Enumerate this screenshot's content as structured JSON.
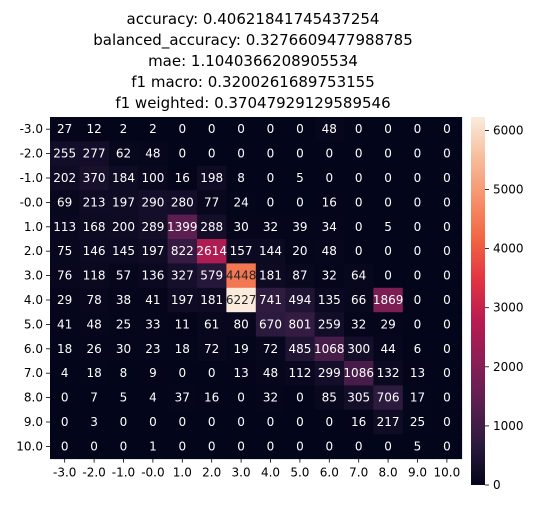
{
  "chart_data": {
    "type": "heatmap",
    "title_lines": [
      "accuracy: 0.40621841745437254",
      "balanced_accuracy: 0.3276609477988785",
      "mae: 1.1040366208905534",
      "f1 macro: 0.3200261689753155",
      "f1 weighted: 0.37047929129589546"
    ],
    "x_tick_labels": [
      "-3.0",
      "-2.0",
      "-1.0",
      "-0.0",
      "1.0",
      "2.0",
      "3.0",
      "4.0",
      "5.0",
      "6.0",
      "7.0",
      "8.0",
      "9.0",
      "10.0"
    ],
    "y_tick_labels": [
      "-3.0",
      "-2.0",
      "-1.0",
      "-0.0",
      "1.0",
      "2.0",
      "3.0",
      "4.0",
      "5.0",
      "6.0",
      "7.0",
      "8.0",
      "9.0",
      "10.0"
    ],
    "values": [
      [
        27,
        12,
        2,
        2,
        0,
        0,
        0,
        0,
        0,
        48,
        0,
        0,
        0,
        0
      ],
      [
        255,
        277,
        62,
        48,
        0,
        0,
        0,
        0,
        0,
        0,
        0,
        0,
        0,
        0
      ],
      [
        202,
        370,
        184,
        100,
        16,
        198,
        8,
        0,
        5,
        0,
        0,
        0,
        0,
        0
      ],
      [
        69,
        213,
        197,
        290,
        280,
        77,
        24,
        0,
        0,
        16,
        0,
        0,
        0,
        0
      ],
      [
        113,
        168,
        200,
        289,
        1399,
        288,
        30,
        32,
        39,
        34,
        0,
        5,
        0,
        0
      ],
      [
        75,
        146,
        145,
        197,
        822,
        2614,
        157,
        144,
        20,
        48,
        0,
        0,
        0,
        0
      ],
      [
        76,
        118,
        57,
        136,
        327,
        579,
        4448,
        181,
        87,
        32,
        64,
        0,
        0,
        0
      ],
      [
        29,
        78,
        38,
        41,
        197,
        181,
        6227,
        741,
        494,
        135,
        66,
        1869,
        0,
        0
      ],
      [
        41,
        48,
        25,
        33,
        11,
        61,
        80,
        670,
        801,
        259,
        32,
        29,
        0,
        0
      ],
      [
        18,
        26,
        30,
        23,
        18,
        72,
        19,
        72,
        485,
        1068,
        300,
        44,
        6,
        0
      ],
      [
        4,
        18,
        8,
        9,
        0,
        0,
        13,
        48,
        112,
        299,
        1086,
        132,
        13,
        0
      ],
      [
        0,
        7,
        5,
        4,
        37,
        16,
        0,
        32,
        0,
        85,
        305,
        706,
        17,
        0
      ],
      [
        0,
        3,
        0,
        0,
        0,
        0,
        0,
        0,
        0,
        0,
        16,
        217,
        25,
        0
      ],
      [
        0,
        0,
        0,
        1,
        0,
        0,
        0,
        0,
        0,
        0,
        0,
        0,
        5,
        0
      ]
    ],
    "colormap": "rocket",
    "colormap_stops": [
      "#03051a",
      "#2c1a3f",
      "#5b1e51",
      "#8a1e55",
      "#b81b51",
      "#e13342",
      "#f26442",
      "#f6916a",
      "#f7bd9c",
      "#faebdd"
    ],
    "vmin": 0,
    "vmax": 6227,
    "colorbar_ticks": [
      0,
      1000,
      2000,
      3000,
      4000,
      5000,
      6000
    ],
    "grid": false,
    "legend": "colorbar-right"
  }
}
